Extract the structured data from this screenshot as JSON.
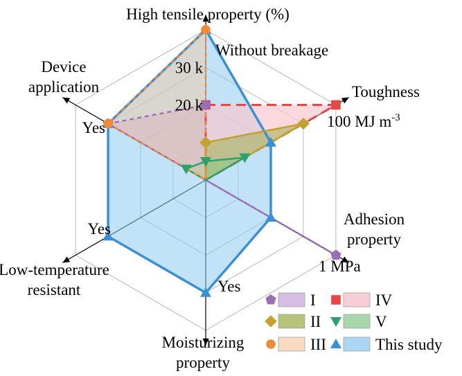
{
  "chart_data": {
    "type": "radar",
    "axes": [
      {
        "label_lines": [
          "High tensile property (%)"
        ],
        "ticks": [
          {
            "text": "20 k",
            "value": 2
          },
          {
            "text": "30 k",
            "value": 3
          }
        ],
        "end_label": "Without breakage"
      },
      {
        "label_lines": [
          "Toughness"
        ],
        "ticks": [],
        "end_label": "100 MJ m",
        "end_label_sup": "-3"
      },
      {
        "label_lines": [
          "Adhesion",
          "property"
        ],
        "ticks": [],
        "end_label": "1 MPa"
      },
      {
        "label_lines": [
          "Moisturizing",
          "property"
        ],
        "ticks": [],
        "end_label": "Yes"
      },
      {
        "label_lines": [
          "Low-temperature",
          "resistant"
        ],
        "ticks": [],
        "end_label": "Yes"
      },
      {
        "label_lines": [
          "Device",
          "application"
        ],
        "ticks": [],
        "end_label": "Yes"
      }
    ],
    "levels": 4,
    "series": [
      {
        "name": "I",
        "values": [
          2,
          0,
          4,
          0,
          0,
          3
        ],
        "marker": "pentagon",
        "color": "#9b6fb8",
        "fill": "#c8a8d8",
        "fill_opacity": 0.55,
        "dash": "6,5",
        "width": 2.5
      },
      {
        "name": "II",
        "values": [
          1,
          3,
          0,
          0,
          0,
          0
        ],
        "marker": "diamond",
        "color": "#c2a12e",
        "fill": "#9cb04e",
        "fill_opacity": 0.55,
        "dash": "",
        "width": 2.5
      },
      {
        "name": "III",
        "values": [
          4,
          0,
          0,
          0,
          0,
          3
        ],
        "marker": "circle",
        "color": "#ee8a3a",
        "fill": "#f6c8a0",
        "fill_opacity": 0.45,
        "dash": "6,5",
        "width": 2.5
      },
      {
        "name": "IV",
        "values": [
          2,
          4,
          0,
          0,
          0,
          0
        ],
        "marker": "square",
        "color": "#e84545",
        "fill": "#f8c8d0",
        "fill_opacity": 0.7,
        "dash": "14,8",
        "width": 3
      },
      {
        "name": "V",
        "values": [
          0.5,
          1.2,
          0,
          0,
          0,
          0.6
        ],
        "marker": "triangle-down",
        "color": "#2aa36b",
        "fill": "#8cc98c",
        "fill_opacity": 0.55,
        "dash": "",
        "width": 2.5
      },
      {
        "name": "This study",
        "values": [
          4,
          2,
          2,
          3,
          3,
          3
        ],
        "marker": "triangle",
        "color": "#3b8fd4",
        "fill": "#8fcaf0",
        "fill_opacity": 0.55,
        "dash": "",
        "width": 3.5
      }
    ],
    "legend": {
      "placement": "bottom-right",
      "columns": 2
    }
  }
}
